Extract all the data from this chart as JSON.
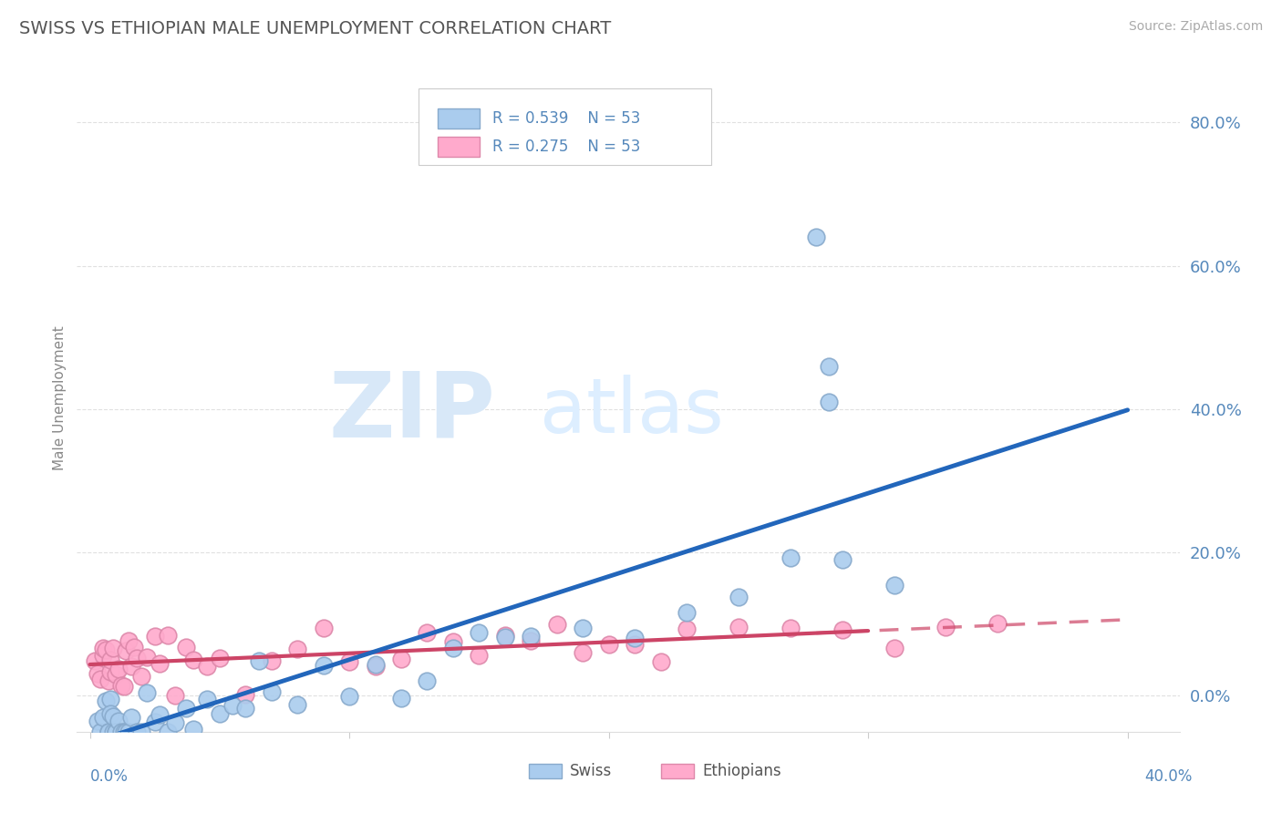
{
  "title": "SWISS VS ETHIOPIAN MALE UNEMPLOYMENT CORRELATION CHART",
  "source": "Source: ZipAtlas.com",
  "ylabel": "Male Unemployment",
  "y_tick_labels": [
    "0.0%",
    "20.0%",
    "40.0%",
    "60.0%",
    "80.0%"
  ],
  "y_tick_values": [
    0.0,
    0.2,
    0.4,
    0.6,
    0.8
  ],
  "x_range": [
    -0.005,
    0.42
  ],
  "y_range": [
    -0.05,
    0.88
  ],
  "swiss_color": "#aaccee",
  "swiss_edge_color": "#88aacc",
  "ethiopian_color": "#ffaacc",
  "ethiopian_edge_color": "#dd88aa",
  "swiss_line_color": "#2266bb",
  "ethiopian_line_color": "#cc4466",
  "legend_r_swiss": "R = 0.539",
  "legend_n_swiss": "N = 53",
  "legend_r_ethiopian": "R = 0.275",
  "legend_n_ethiopian": "N = 53",
  "background_color": "#ffffff",
  "grid_color": "#cccccc",
  "title_color": "#555555",
  "tick_label_color": "#5588bb",
  "watermark_zip_color": "#d8e8f8",
  "watermark_atlas_color": "#ddeeff"
}
